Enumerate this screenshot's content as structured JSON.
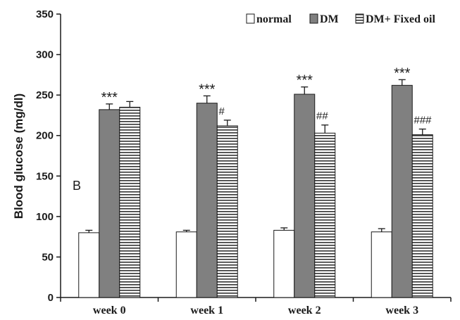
{
  "chart_data": {
    "type": "bar",
    "title": "",
    "panel_label": "B",
    "xlabel": "",
    "ylabel": "Blood glucose (mg/dl)",
    "ylim": [
      0,
      350
    ],
    "yticks": [
      0,
      50,
      100,
      150,
      200,
      250,
      300,
      350
    ],
    "categories": [
      "week 0",
      "week 1",
      "week 2",
      "week 3"
    ],
    "legend_position": "top-right",
    "grid": false,
    "series": [
      {
        "name": "normal",
        "color": "#ffffff",
        "pattern": "none",
        "values": [
          80,
          81,
          83,
          81
        ],
        "errors": [
          3,
          2,
          3,
          4
        ],
        "annotations": [
          "",
          "",
          "",
          ""
        ]
      },
      {
        "name": "DM",
        "color": "#808080",
        "pattern": "none",
        "values": [
          232,
          240,
          251,
          262
        ],
        "errors": [
          7,
          9,
          9,
          7
        ],
        "annotations": [
          "***",
          "***",
          "***",
          "***"
        ]
      },
      {
        "name": "DM+ Fixed oil",
        "color": "#ffffff",
        "pattern": "horizontal-stripes",
        "values": [
          235,
          212,
          203,
          201
        ],
        "errors": [
          7,
          7,
          10,
          7
        ],
        "annotations": [
          "",
          "#",
          "##",
          "###"
        ]
      }
    ]
  }
}
